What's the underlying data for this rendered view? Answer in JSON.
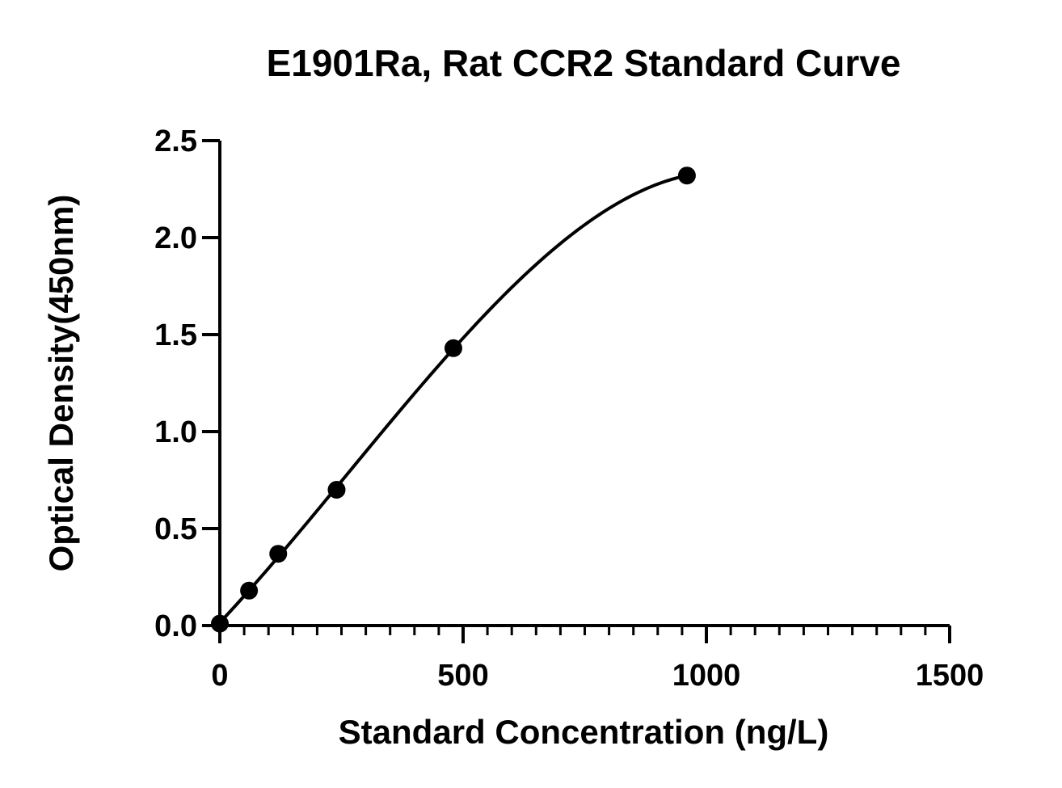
{
  "chart_data": {
    "type": "scatter",
    "title": "E1901Ra, Rat CCR2 Standard Curve",
    "xlabel": "Standard Concentration (ng/L)",
    "ylabel": "Optical Density(450nm)",
    "xlim": [
      0,
      1500
    ],
    "ylim": [
      0,
      2.5
    ],
    "x_ticks": [
      0,
      500,
      1000,
      1500
    ],
    "x_tick_labels": [
      "0",
      "500",
      "1000",
      "1500"
    ],
    "x_minor_step": 50,
    "y_ticks": [
      0,
      0.5,
      1.0,
      1.5,
      2.0,
      2.5
    ],
    "y_tick_labels": [
      "0.0",
      "0.5",
      "1.0",
      "1.5",
      "2.0",
      "2.5"
    ],
    "grid": false,
    "legend": "none",
    "series": [
      {
        "x": [
          0,
          60,
          120,
          240,
          480,
          960
        ],
        "y": [
          0.01,
          0.18,
          0.37,
          0.7,
          1.43,
          2.32
        ],
        "marker": "circle",
        "color": "#000000",
        "fit_curve": true
      }
    ]
  }
}
